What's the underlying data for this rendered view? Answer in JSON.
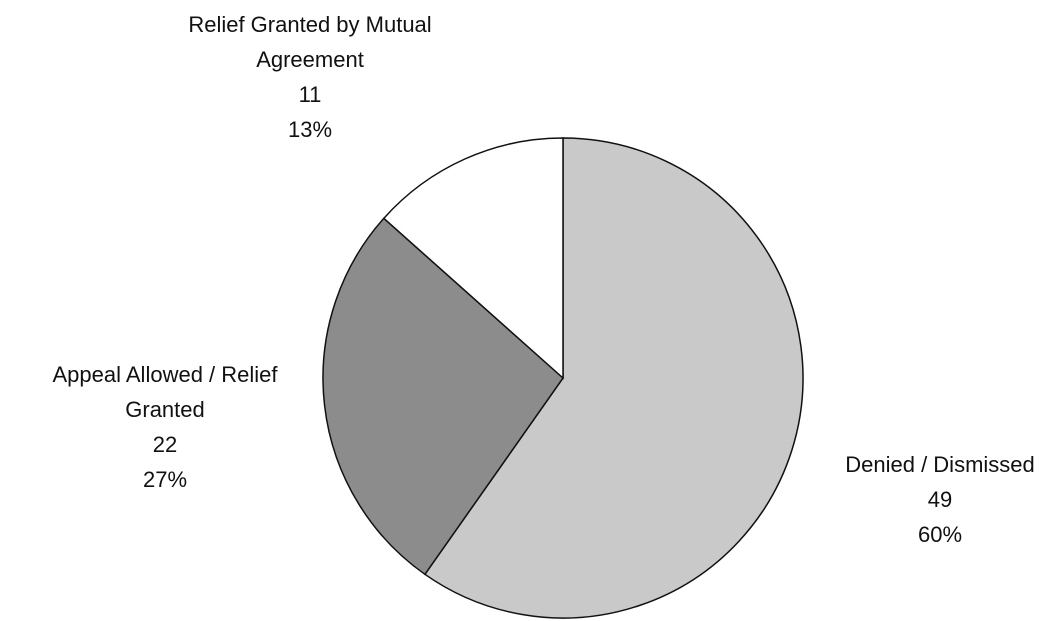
{
  "chart_data": {
    "type": "pie",
    "categories": [
      "Denied / Dismissed",
      "Appeal Allowed / Relief Granted",
      "Relief Granted by Mutual Agreement"
    ],
    "values": [
      49,
      22,
      11
    ],
    "percent_labels": [
      "60%",
      "27%",
      "13%"
    ],
    "colors": [
      "#c9c9c9",
      "#8c8c8c",
      "#ffffff"
    ],
    "start_angle": "top",
    "direction": "clockwise"
  }
}
